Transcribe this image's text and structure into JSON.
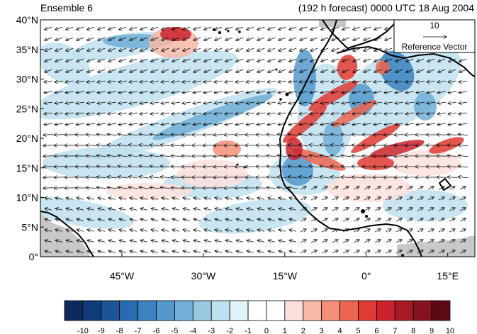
{
  "header": {
    "left_title": "Ensemble 6",
    "right_title": "(192 h forecast) 0000 UTC 18 Aug 2004"
  },
  "map": {
    "lat_labels": [
      "40°N",
      "35°N",
      "30°N",
      "25°N",
      "20°N",
      "15°N",
      "10°N",
      "5°N",
      "0°"
    ],
    "lon_labels": [
      "45°W",
      "30°W",
      "15°W",
      "0°",
      "15°E"
    ],
    "lon_range": [
      -60,
      20
    ],
    "lat_range": [
      0,
      40
    ]
  },
  "reference_vector": {
    "magnitude": "10",
    "label": "Reference Vector"
  },
  "colorbar": {
    "labels": [
      "-10",
      "-9",
      "-8",
      "-7",
      "-6",
      "-5",
      "-4",
      "-3",
      "-2",
      "-1",
      "0",
      "1",
      "2",
      "3",
      "4",
      "5",
      "6",
      "7",
      "8",
      "9",
      "10"
    ],
    "colors": [
      "#0b2a5b",
      "#103a78",
      "#1c5596",
      "#2a6cb0",
      "#3a82c0",
      "#5599cb",
      "#72afd6",
      "#97c9e2",
      "#bfe0ef",
      "#e2f2fa",
      "#ffffff",
      "#ffffff",
      "#fde0dd",
      "#f7b8a6",
      "#f39077",
      "#ec6550",
      "#df3a33",
      "#c8232c",
      "#a91926",
      "#861220",
      "#5e0a14"
    ]
  }
}
